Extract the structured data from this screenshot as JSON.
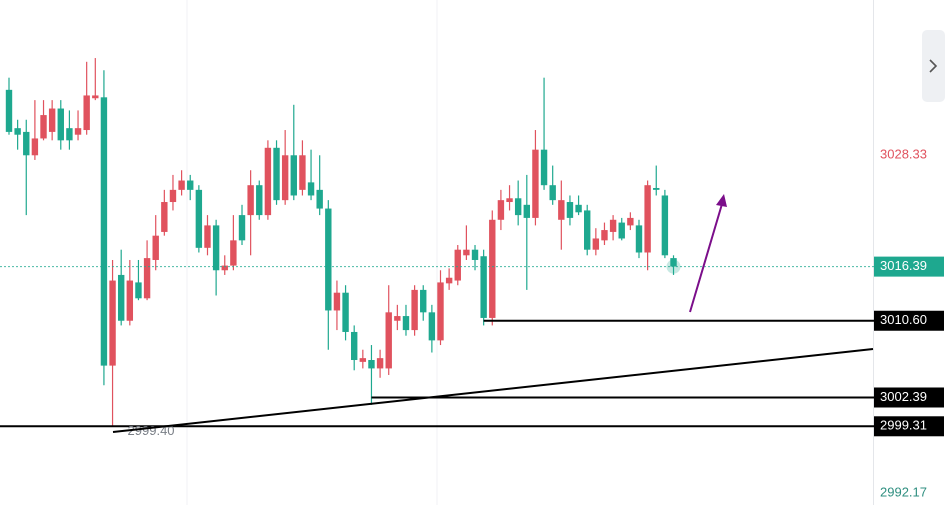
{
  "chart_data": {
    "type": "candlestick",
    "up_color": "#e0525e",
    "down_color": "#1ea88f",
    "open": [
      3035.3,
      3031.2,
      3030.8,
      3028.3,
      3030.1,
      3030.8,
      3033.3,
      3031.2,
      3030.5,
      3031.0,
      3034.4,
      3034.5,
      3005.8,
      3015.5,
      3010.6,
      3014.7,
      3013.0,
      3017.1,
      3020.1,
      3023.3,
      3024.6,
      3025.6,
      3024.6,
      3018.4,
      3020.8,
      3016.0,
      3016.5,
      3021.9,
      3021.9,
      3025.1,
      3021.9,
      3029.1,
      3023.5,
      3028.3,
      3024.6,
      3025.4,
      3024.6,
      3022.6,
      3011.7,
      3013.6,
      3009.4,
      3006.2,
      3006.4,
      3005.5,
      3005.5,
      3010.6,
      3011.1,
      3009.6,
      3013.9,
      3011.5,
      3008.5,
      3014.6,
      3014.9,
      3017.6,
      3018.2,
      3017.5,
      3010.9,
      3021.4,
      3023.3,
      3023.7,
      3023.0,
      3021.6,
      3028.9,
      3025.1,
      3021.4,
      3023.3,
      3023.0,
      3022.4,
      3018.2,
      3019.2,
      3020.1,
      3021.1,
      3020.8,
      3020.8,
      3017.9,
      3024.8,
      3024.0,
      3017.3
    ],
    "high": [
      3036.6,
      3032.1,
      3032.1,
      3034.2,
      3034.2,
      3034.2,
      3034.2,
      3033.1,
      3033.1,
      3038.3,
      3038.7,
      3037.4,
      3017.1,
      3018.2,
      3017.1,
      3017.1,
      3019.2,
      3021.9,
      3024.6,
      3026.2,
      3026.7,
      3026.2,
      3025.1,
      3021.9,
      3021.4,
      3017.6,
      3021.9,
      3023.0,
      3026.7,
      3025.6,
      3029.9,
      3029.9,
      3031.0,
      3033.7,
      3029.9,
      3028.9,
      3028.3,
      3023.5,
      3014.9,
      3014.4,
      3010.1,
      3007.5,
      3008.0,
      3007.5,
      3014.4,
      3012.3,
      3012.3,
      3014.4,
      3014.4,
      3012.3,
      3016.0,
      3016.2,
      3018.7,
      3020.8,
      3018.7,
      3018.2,
      3022.4,
      3024.6,
      3025.1,
      3025.6,
      3026.2,
      3031.0,
      3036.6,
      3027.2,
      3025.6,
      3024.0,
      3024.0,
      3023.0,
      3020.5,
      3021.1,
      3021.9,
      3021.6,
      3022.2,
      3021.4,
      3025.6,
      3027.2,
      3024.6,
      3017.6
    ],
    "low": [
      3030.5,
      3028.9,
      3021.9,
      3027.8,
      3029.9,
      3029.9,
      3028.9,
      3028.9,
      3029.9,
      3030.5,
      3034.2,
      3003.7,
      2999.4,
      3010.1,
      3010.1,
      3012.8,
      3012.8,
      3016.0,
      3019.7,
      3022.4,
      3024.0,
      3023.5,
      3017.9,
      3017.6,
      3013.3,
      3015.5,
      3016.0,
      3018.7,
      3017.6,
      3021.4,
      3021.4,
      3023.0,
      3023.0,
      3023.5,
      3024.0,
      3023.5,
      3021.9,
      3007.5,
      3009.6,
      3008.5,
      3005.3,
      3005.5,
      3001.6,
      3004.5,
      3004.8,
      3009.6,
      3009.0,
      3009.0,
      3010.6,
      3007.2,
      3008.0,
      3013.9,
      3014.4,
      3017.1,
      3016.0,
      3010.1,
      3010.1,
      3020.3,
      3022.4,
      3020.8,
      3013.9,
      3020.8,
      3024.6,
      3023.0,
      3018.2,
      3020.8,
      3021.9,
      3017.6,
      3017.6,
      3018.7,
      3019.2,
      3019.2,
      3020.3,
      3017.3,
      3016.0,
      3024.0,
      3017.3,
      3015.5
    ],
    "close": [
      3030.8,
      3030.5,
      3028.3,
      3030.1,
      3032.6,
      3033.3,
      3029.9,
      3029.9,
      3031.2,
      3034.7,
      3034.7,
      3005.8,
      3014.9,
      3010.6,
      3014.9,
      3013.0,
      3017.3,
      3019.7,
      3023.3,
      3024.6,
      3025.6,
      3024.6,
      3018.4,
      3020.8,
      3016.0,
      3016.5,
      3019.2,
      3019.2,
      3025.1,
      3021.9,
      3029.1,
      3023.5,
      3028.3,
      3024.0,
      3028.3,
      3024.0,
      3022.6,
      3011.7,
      3013.6,
      3009.4,
      3006.4,
      3006.6,
      3005.5,
      3006.6,
      3011.5,
      3011.1,
      3009.6,
      3013.9,
      3011.5,
      3008.5,
      3014.7,
      3015.2,
      3018.2,
      3018.2,
      3017.1,
      3010.9,
      3021.4,
      3023.5,
      3023.7,
      3021.9,
      3021.6,
      3028.9,
      3025.1,
      3023.5,
      3023.5,
      3021.6,
      3022.2,
      3018.2,
      3019.4,
      3020.3,
      3021.4,
      3019.4,
      3021.6,
      3017.9,
      3025.1,
      3024.6,
      3017.6,
      3016.4
    ],
    "ylim": [
      2990.89,
      3044.91
    ],
    "yticks": [
      3028.33,
      2992.17
    ],
    "current_price": 3016.39,
    "levels": [
      {
        "value": 3010.6,
        "label": "3010.60"
      },
      3002.39,
      2999.31
    ],
    "low_label": {
      "value": 2999.4,
      "label": "2999.40"
    }
  }
}
